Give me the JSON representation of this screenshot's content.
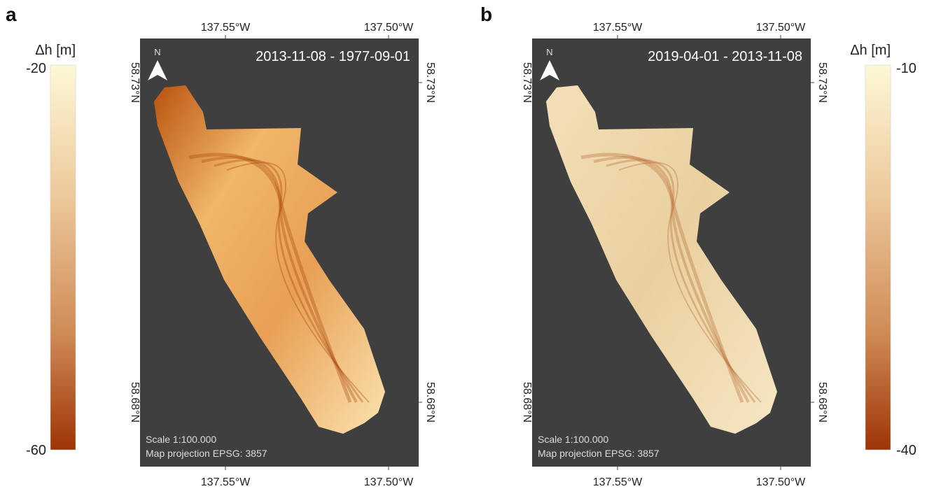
{
  "panels": [
    {
      "label": "a",
      "date_range": "2013-11-08 - 1977-09-01",
      "north": "N",
      "scale": "Scale 1:100.000",
      "projection": "Map projection EPSG: 3857",
      "lon_ticks": [
        "137.55°W",
        "137.50°W"
      ],
      "lat_ticks": [
        "58.73°N",
        "58.68°N"
      ],
      "colorbar": {
        "title": "Δh [m]",
        "max": -20,
        "min": -60
      }
    },
    {
      "label": "b",
      "date_range": "2019-04-01 - 2013-11-08",
      "north": "N",
      "scale": "Scale 1:100.000",
      "projection": "Map projection EPSG: 3857",
      "lon_ticks": [
        "137.55°W",
        "137.50°W"
      ],
      "lat_ticks": [
        "58.73°N",
        "58.68°N"
      ],
      "colorbar": {
        "title": "Δh [m]",
        "max": -10,
        "min": -40
      }
    }
  ]
}
